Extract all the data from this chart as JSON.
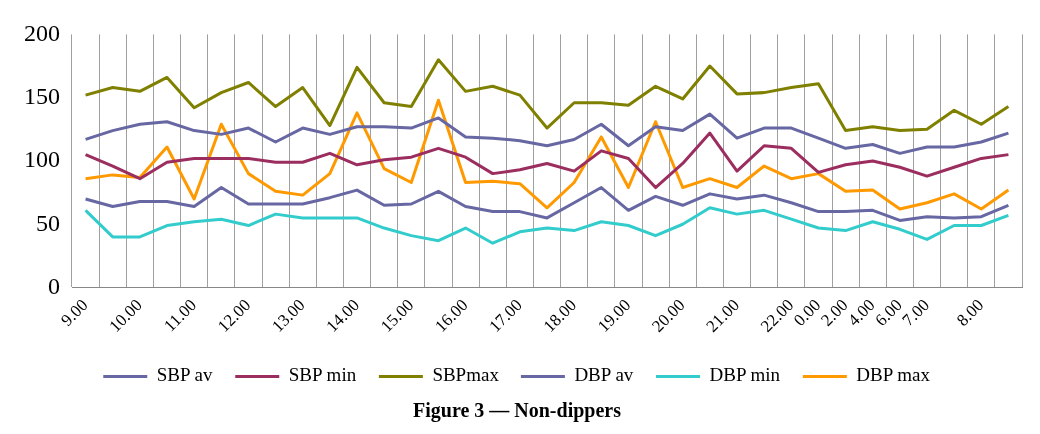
{
  "chart_data": {
    "type": "line",
    "title": "Figure 3 — Non-dippers",
    "categories": [
      "9.00",
      null,
      "10.00",
      null,
      "11.00",
      null,
      "12.00",
      null,
      "13.00",
      null,
      "14.00",
      null,
      "15.00",
      null,
      "16.00",
      null,
      "17.00",
      null,
      "18.00",
      null,
      "19.00",
      null,
      "20.00",
      null,
      "21.00",
      null,
      "22.00",
      "0.00",
      "2.00",
      "4.00",
      "6.00",
      "7.00",
      null,
      "8.00",
      null
    ],
    "series": [
      {
        "name": "SBP av",
        "color": "#6767a3",
        "values": [
          117,
          124,
          129,
          131,
          124,
          121,
          126,
          115,
          126,
          121,
          127,
          127,
          126,
          134,
          119,
          118,
          116,
          112,
          117,
          129,
          112,
          127,
          124,
          137,
          118,
          126,
          126,
          118,
          110,
          113,
          106,
          111,
          111,
          115,
          122
        ]
      },
      {
        "name": "SBP min",
        "color": "#9b2d5f",
        "values": [
          105,
          96,
          86,
          99,
          102,
          102,
          102,
          99,
          99,
          106,
          97,
          101,
          103,
          110,
          103,
          90,
          93,
          98,
          92,
          108,
          102,
          79,
          98,
          122,
          92,
          112,
          110,
          91,
          97,
          100,
          95,
          88,
          95,
          102,
          105
        ]
      },
      {
        "name": "SBPmax",
        "color": "#808000",
        "values": [
          152,
          158,
          155,
          166,
          142,
          154,
          162,
          143,
          158,
          128,
          174,
          146,
          143,
          180,
          155,
          159,
          152,
          126,
          146,
          146,
          144,
          159,
          149,
          175,
          153,
          154,
          158,
          161,
          124,
          127,
          124,
          125,
          140,
          129,
          143
        ]
      },
      {
        "name": "DBP av",
        "color": "#6767a3",
        "values": [
          70,
          64,
          68,
          68,
          64,
          79,
          66,
          66,
          66,
          71,
          77,
          65,
          66,
          76,
          64,
          60,
          60,
          55,
          67,
          79,
          61,
          72,
          65,
          74,
          70,
          73,
          67,
          60,
          60,
          61,
          53,
          56,
          55,
          56,
          65
        ]
      },
      {
        "name": "DBP min",
        "color": "#33cccc",
        "values": [
          61,
          40,
          40,
          49,
          52,
          54,
          49,
          58,
          55,
          55,
          55,
          47,
          41,
          37,
          47,
          35,
          44,
          47,
          45,
          52,
          49,
          41,
          50,
          63,
          58,
          61,
          54,
          47,
          45,
          52,
          46,
          38,
          49,
          49,
          57
        ]
      },
      {
        "name": "DBP max",
        "color": "#ff9900",
        "values": [
          86,
          89,
          87,
          111,
          70,
          129,
          90,
          76,
          73,
          90,
          138,
          94,
          83,
          148,
          83,
          84,
          82,
          63,
          83,
          119,
          79,
          131,
          79,
          86,
          79,
          96,
          86,
          90,
          76,
          77,
          62,
          67,
          74,
          62,
          77
        ]
      }
    ],
    "ylim": [
      0,
      200
    ],
    "yticks": [
      0,
      50,
      100,
      150,
      200
    ],
    "grid": "x",
    "legend": "bottom"
  }
}
